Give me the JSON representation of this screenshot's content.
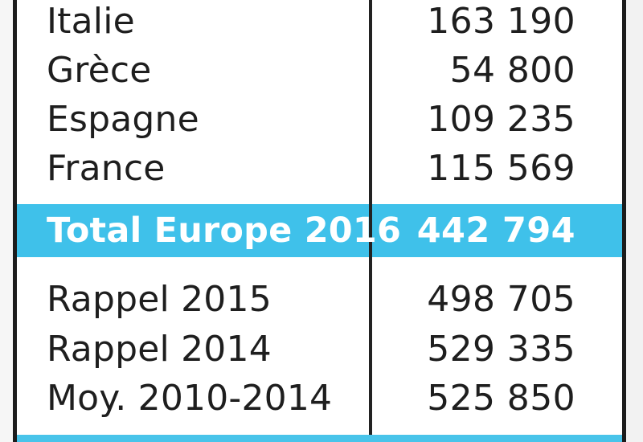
{
  "table": {
    "rows": [
      {
        "label": "Italie",
        "value": "163 190"
      },
      {
        "label": "Grèce",
        "value": "54 800"
      },
      {
        "label": "Espagne",
        "value": "109 235"
      },
      {
        "label": "France",
        "value": "115 569"
      }
    ],
    "total": {
      "label": "Total Europe 2016",
      "value": "442 794"
    },
    "recap": [
      {
        "label": "Rappel 2015",
        "value": "498 705"
      },
      {
        "label": "Rappel 2014",
        "value": "529 335"
      },
      {
        "label": "Moy. 2010-2014",
        "value": "525 850"
      }
    ]
  },
  "colors": {
    "accent": "#3fc1ea",
    "text": "#1e1e1e",
    "border": "#1c1c1c"
  }
}
